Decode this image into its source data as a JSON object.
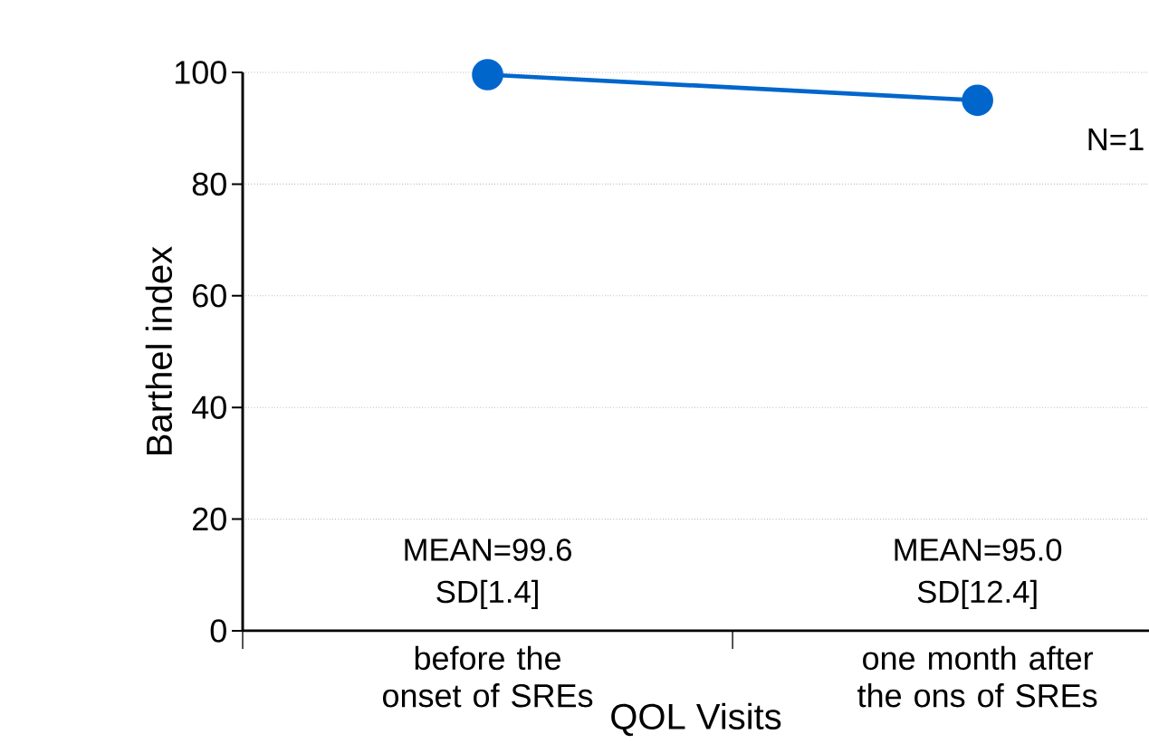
{
  "chart_data": {
    "type": "line",
    "xlabel": "QOL Visits",
    "ylabel": "Barthel  index",
    "categories": [
      "before the onset of SREs",
      "one month after the ons of SREs"
    ],
    "series": [
      {
        "color": "#0066cc",
        "values": [
          99.6,
          95.0
        ]
      }
    ],
    "ylim": [
      0,
      100
    ],
    "yticks": [
      0,
      20,
      40,
      60,
      80,
      100
    ],
    "grid": "y",
    "marker": "circle",
    "line_style": "solid",
    "annotations": [
      "MEAN=99.6",
      "SD[1.4]",
      "MEAN=95.0",
      "SD[12.4]",
      "N=1"
    ]
  }
}
